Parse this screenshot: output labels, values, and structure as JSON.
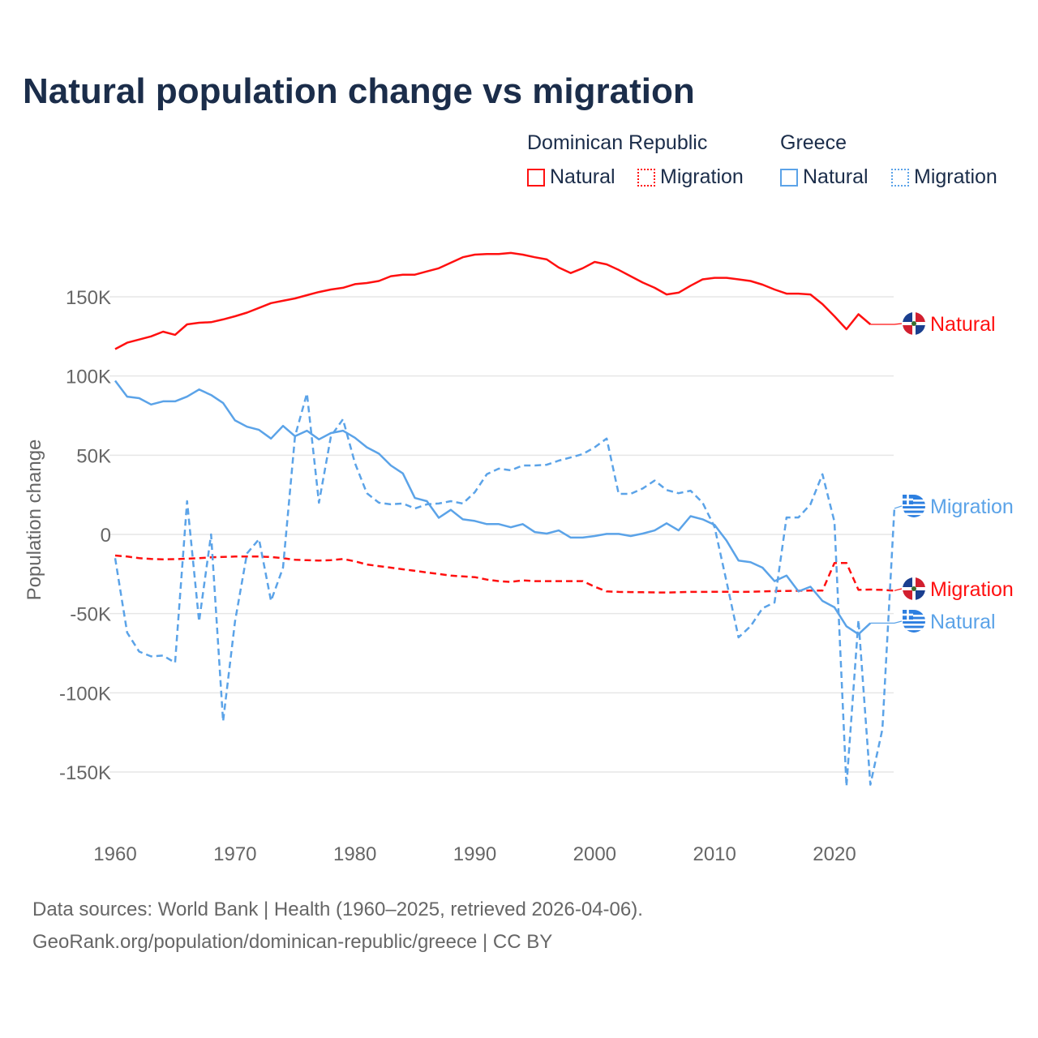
{
  "title": "Natural population change vs migration",
  "legend": {
    "groups": [
      {
        "label": "Dominican Republic",
        "items": [
          {
            "label": "Natural",
            "style": "solid"
          },
          {
            "label": "Migration",
            "style": "dotted"
          }
        ],
        "color": "#ff1010"
      },
      {
        "label": "Greece",
        "items": [
          {
            "label": "Natural",
            "style": "solid"
          },
          {
            "label": "Migration",
            "style": "dotted"
          }
        ],
        "color": "#5ba3e8"
      }
    ]
  },
  "footer": {
    "line1": "Data sources: World Bank | Health (1960–2025, retrieved 2026-04-06).",
    "line2": "GeoRank.org/population/dominican-republic/greece | CC BY"
  },
  "chart_data": {
    "type": "line",
    "title": "Natural population change vs migration",
    "xlabel": "",
    "ylabel": "Population change",
    "xlim": [
      1960,
      2025
    ],
    "ylim": [
      -165000,
      185000
    ],
    "xticks": [
      1960,
      1970,
      1980,
      1990,
      2000,
      2010,
      2020
    ],
    "xtick_labels": [
      "1960",
      "1970",
      "1980",
      "1990",
      "2000",
      "2010",
      "2020"
    ],
    "yticks": [
      150000,
      100000,
      50000,
      0,
      -50000,
      -100000,
      -150000
    ],
    "ytick_labels": [
      "150K",
      "100K",
      "50K",
      "0",
      "-50K",
      "-100K",
      "-150K"
    ],
    "grid": true,
    "legend_position": "top-right",
    "series": [
      {
        "name": "Dominican Republic Natural",
        "end_label": "Natural",
        "country": "Dominican Republic",
        "color": "#ff1010",
        "dash": false,
        "start": 1960,
        "values": [
          117000,
          121000,
          123000,
          125000,
          128000,
          126000,
          132600,
          133600,
          134000,
          135700,
          137700,
          140000,
          143000,
          146000,
          147500,
          149000,
          151000,
          153000,
          154600,
          155700,
          158000,
          158700,
          160000,
          163000,
          164000,
          164000,
          166000,
          168000,
          171500,
          175000,
          176600,
          177000,
          177000,
          177700,
          176600,
          175000,
          173600,
          168500,
          165000,
          168000,
          172000,
          170500,
          167000,
          163000,
          159000,
          155700,
          151500,
          152600,
          157000,
          161000,
          162000,
          162000,
          161000,
          160000,
          157700,
          154600,
          152000,
          152000,
          151500,
          145400,
          137700,
          129500,
          139000,
          132600
        ]
      },
      {
        "name": "Dominican Republic Migration",
        "end_label": "Migration",
        "country": "Dominican Republic",
        "color": "#ff1010",
        "dash": true,
        "start": 1960,
        "values": [
          -13300,
          -14000,
          -15000,
          -15500,
          -15700,
          -15600,
          -15300,
          -15000,
          -14500,
          -14200,
          -14000,
          -14000,
          -14000,
          -14300,
          -15000,
          -16000,
          -16300,
          -16500,
          -16300,
          -15500,
          -17000,
          -19000,
          -20000,
          -21000,
          -22000,
          -23000,
          -24000,
          -25000,
          -26000,
          -26500,
          -27000,
          -28500,
          -29500,
          -30000,
          -29000,
          -29500,
          -29500,
          -29500,
          -29500,
          -29500,
          -33000,
          -36000,
          -36300,
          -36400,
          -36500,
          -36600,
          -36700,
          -36500,
          -36300,
          -36300,
          -36200,
          -36200,
          -36300,
          -36200,
          -36000,
          -35800,
          -35700,
          -35600,
          -35500,
          -35500,
          -18000,
          -18000,
          -35000,
          -34800,
          -35000,
          -35500
        ]
      },
      {
        "name": "Greece Natural",
        "end_label": "Natural",
        "country": "Greece",
        "color": "#5ba3e8",
        "dash": false,
        "start": 1960,
        "values": [
          97000,
          87000,
          86000,
          82000,
          84000,
          84000,
          87000,
          91500,
          88000,
          83000,
          72000,
          68000,
          66000,
          60500,
          68500,
          62000,
          65500,
          60000,
          64000,
          65500,
          61000,
          55000,
          51000,
          43500,
          38500,
          23000,
          21000,
          10500,
          15500,
          9500,
          8500,
          6500,
          6500,
          4500,
          6500,
          1500,
          500,
          2500,
          -2000,
          -2000,
          -1000,
          300,
          300,
          -1000,
          500,
          2500,
          7000,
          2500,
          11500,
          9500,
          6000,
          -4000,
          -16500,
          -17500,
          -21000,
          -29500,
          -26000,
          -36000,
          -33000,
          -42000,
          -46000,
          -58000,
          -63000,
          -56000
        ]
      },
      {
        "name": "Greece Migration",
        "end_label": "Migration",
        "country": "Greece",
        "color": "#5ba3e8",
        "dash": true,
        "start": 1960,
        "values": [
          -15000,
          -62000,
          -74000,
          -77000,
          -76500,
          -81000,
          21000,
          -55000,
          0,
          -118000,
          -55000,
          -12000,
          -3000,
          -42000,
          -21000,
          62000,
          89000,
          20000,
          62000,
          72700,
          45000,
          26000,
          20000,
          19000,
          19500,
          16400,
          19000,
          19500,
          21000,
          19500,
          26600,
          38000,
          41500,
          40500,
          43500,
          43500,
          44000,
          46600,
          48600,
          50700,
          55000,
          60500,
          25600,
          25600,
          29000,
          34000,
          28000,
          26000,
          27600,
          20000,
          4600,
          -30000,
          -65000,
          -58000,
          -46600,
          -43000,
          10700,
          10700,
          19000,
          38000,
          8000,
          -159000,
          -54000,
          -158000,
          -123000,
          16400
        ]
      }
    ],
    "end_labels_order": [
      "Dominican Republic Natural",
      "Greece Migration",
      "Dominican Republic Migration",
      "Greece Natural"
    ]
  }
}
